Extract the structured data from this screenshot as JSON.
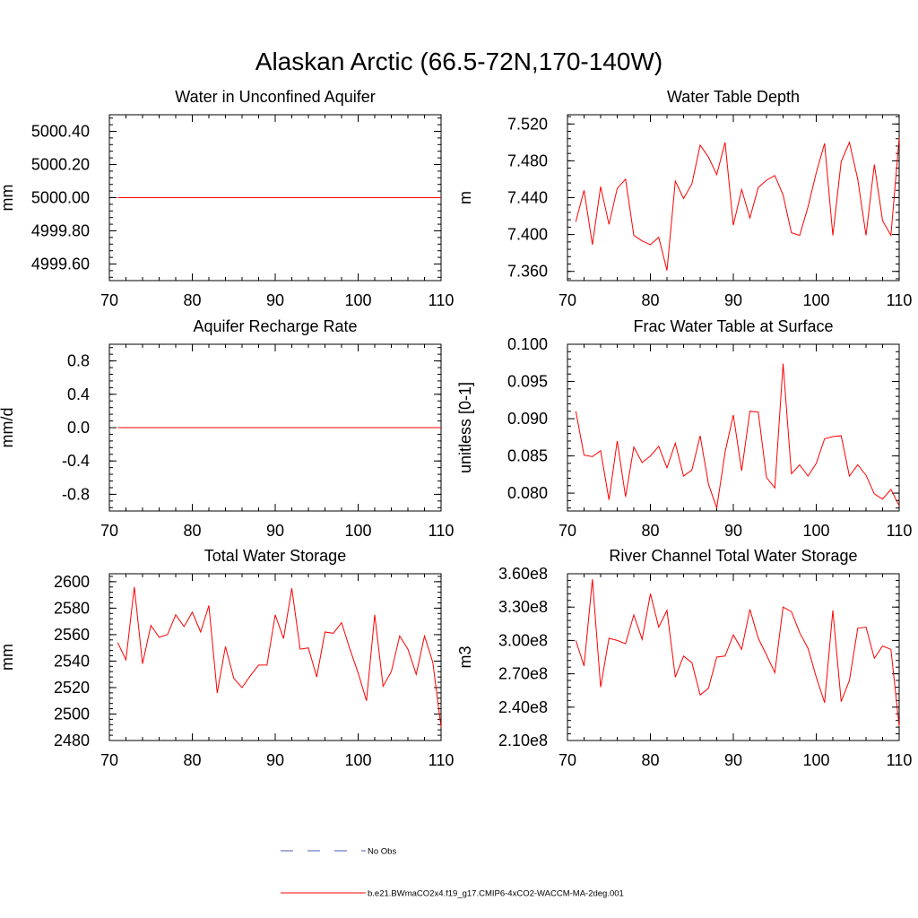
{
  "figure": {
    "title": "Alaskan Arctic (66.5-72N,170-140W)"
  },
  "legend": {
    "entries": [
      {
        "label": "No Obs",
        "color": "#4a5bb8",
        "dashed": true
      },
      {
        "label": "b.e21.BWmaCO2x4.f19_g17.CMIP6-4xCO2-WACCM-MA-2deg.001",
        "color": "#ff0000",
        "dashed": false
      }
    ]
  },
  "colors": {
    "series": "#ff0000",
    "axis": "#000000"
  },
  "chart_data": [
    {
      "type": "line",
      "title": "Water in Unconfined Aquifer",
      "ylabel": "mm",
      "xlim": [
        70,
        110
      ],
      "ylim": [
        4999.5,
        5000.5
      ],
      "xticks": [
        "70",
        "80",
        "90",
        "100",
        "110"
      ],
      "yticks": [
        "4999.60",
        "4999.80",
        "5000.00",
        "5000.20",
        "5000.40"
      ],
      "series": [
        {
          "name": "b.e21.BWmaCO2x4.f19_g17.CMIP6-4xCO2-WACCM-MA-2deg.001",
          "x": [
            71,
            110
          ],
          "values": [
            5000.0,
            5000.0
          ]
        }
      ]
    },
    {
      "type": "line",
      "title": "Water Table Depth",
      "ylabel": "m",
      "xlim": [
        70,
        110
      ],
      "ylim": [
        7.35,
        7.53
      ],
      "xticks": [
        "70",
        "80",
        "90",
        "100",
        "110"
      ],
      "yticks": [
        "7.360",
        "7.400",
        "7.440",
        "7.480",
        "7.520"
      ],
      "series": [
        {
          "name": "b.e21.BWmaCO2x4.f19_g17.CMIP6-4xCO2-WACCM-MA-2deg.001",
          "x": [
            71,
            72,
            73,
            74,
            75,
            76,
            77,
            78,
            79,
            80,
            81,
            82,
            83,
            84,
            85,
            86,
            87,
            88,
            89,
            90,
            91,
            92,
            93,
            94,
            95,
            96,
            97,
            98,
            99,
            100,
            101,
            102,
            103,
            104,
            105,
            106,
            107,
            108,
            109,
            110
          ],
          "values": [
            7.414,
            7.448,
            7.389,
            7.452,
            7.411,
            7.45,
            7.46,
            7.399,
            7.393,
            7.389,
            7.397,
            7.361,
            7.458,
            7.439,
            7.455,
            7.497,
            7.484,
            7.465,
            7.5,
            7.41,
            7.449,
            7.418,
            7.451,
            7.459,
            7.464,
            7.443,
            7.402,
            7.399,
            7.43,
            7.467,
            7.499,
            7.399,
            7.479,
            7.5,
            7.46,
            7.399,
            7.476,
            7.415,
            7.399,
            7.505
          ]
        }
      ]
    },
    {
      "type": "line",
      "title": "Aquifer Recharge Rate",
      "ylabel": "mm/d",
      "xlim": [
        70,
        110
      ],
      "ylim": [
        -1.0,
        1.0
      ],
      "xticks": [
        "70",
        "80",
        "90",
        "100",
        "110"
      ],
      "yticks": [
        "-0.8",
        "-0.4",
        "0.0",
        "0.4",
        "0.8"
      ],
      "series": [
        {
          "name": "b.e21.BWmaCO2x4.f19_g17.CMIP6-4xCO2-WACCM-MA-2deg.001",
          "x": [
            71,
            110
          ],
          "values": [
            0.0,
            0.0
          ]
        }
      ]
    },
    {
      "type": "line",
      "title": "Frac Water Table at Surface",
      "ylabel": "unitless [0-1]",
      "xlim": [
        70,
        110
      ],
      "ylim": [
        0.0776,
        0.1
      ],
      "xticks": [
        "70",
        "80",
        "90",
        "100",
        "110"
      ],
      "yticks": [
        "0.080",
        "0.085",
        "0.090",
        "0.095",
        "0.100"
      ],
      "series": [
        {
          "name": "b.e21.BWmaCO2x4.f19_g17.CMIP6-4xCO2-WACCM-MA-2deg.001",
          "x": [
            71,
            72,
            73,
            74,
            75,
            76,
            77,
            78,
            79,
            80,
            81,
            82,
            83,
            84,
            85,
            86,
            87,
            88,
            89,
            90,
            91,
            92,
            93,
            94,
            95,
            96,
            97,
            98,
            99,
            100,
            101,
            102,
            103,
            104,
            105,
            106,
            107,
            108,
            109,
            110
          ],
          "values": [
            0.091,
            0.0851,
            0.0849,
            0.0857,
            0.0791,
            0.087,
            0.0795,
            0.0862,
            0.0841,
            0.085,
            0.0863,
            0.0834,
            0.0867,
            0.0823,
            0.0831,
            0.0877,
            0.0812,
            0.078,
            0.0855,
            0.0905,
            0.083,
            0.091,
            0.0909,
            0.0821,
            0.0807,
            0.0974,
            0.0826,
            0.0838,
            0.0823,
            0.084,
            0.0873,
            0.0876,
            0.0877,
            0.0823,
            0.0838,
            0.0824,
            0.0799,
            0.0792,
            0.0805,
            0.0783
          ]
        }
      ]
    },
    {
      "type": "line",
      "title": "Total Water Storage",
      "ylabel": "mm",
      "xlim": [
        70,
        110
      ],
      "ylim": [
        2480,
        2606
      ],
      "xticks": [
        "70",
        "80",
        "90",
        "100",
        "110"
      ],
      "yticks": [
        "2480",
        "2500",
        "2520",
        "2540",
        "2560",
        "2580",
        "2600"
      ],
      "series": [
        {
          "name": "b.e21.BWmaCO2x4.f19_g17.CMIP6-4xCO2-WACCM-MA-2deg.001",
          "x": [
            71,
            72,
            73,
            74,
            75,
            76,
            77,
            78,
            79,
            80,
            81,
            82,
            83,
            84,
            85,
            86,
            87,
            88,
            89,
            90,
            91,
            92,
            93,
            94,
            95,
            96,
            97,
            98,
            99,
            100,
            101,
            102,
            103,
            104,
            105,
            106,
            107,
            108,
            109,
            110
          ],
          "values": [
            2554,
            2541,
            2596,
            2538,
            2567,
            2558,
            2560,
            2575,
            2566,
            2577,
            2562,
            2582,
            2516,
            2551,
            2527,
            2520,
            2529,
            2537,
            2537,
            2575,
            2557,
            2595,
            2549,
            2550,
            2528,
            2562,
            2561,
            2569,
            2549,
            2531,
            2510,
            2575,
            2521,
            2532,
            2559,
            2549,
            2530,
            2559,
            2539,
            2490
          ]
        }
      ]
    },
    {
      "type": "line",
      "title": "River Channel Total Water Storage",
      "ylabel": "m3",
      "xlim": [
        70,
        110
      ],
      "ylim": [
        210000000.0,
        360000000.0
      ],
      "xticks": [
        "70",
        "80",
        "90",
        "100",
        "110"
      ],
      "yticks": [
        "2.10e8",
        "2.40e8",
        "2.70e8",
        "3.00e8",
        "3.30e8",
        "3.60e8"
      ],
      "series": [
        {
          "name": "b.e21.BWmaCO2x4.f19_g17.CMIP6-4xCO2-WACCM-MA-2deg.001",
          "x": [
            71,
            72,
            73,
            74,
            75,
            76,
            77,
            78,
            79,
            80,
            81,
            82,
            83,
            84,
            85,
            86,
            87,
            88,
            89,
            90,
            91,
            92,
            93,
            94,
            95,
            96,
            97,
            98,
            99,
            100,
            101,
            102,
            103,
            104,
            105,
            106,
            107,
            108,
            109,
            110
          ],
          "values": [
            300000000.0,
            277000000.0,
            355000000.0,
            258000000.0,
            302000000.0,
            300000000.0,
            297000000.0,
            323000000.0,
            301000000.0,
            342000000.0,
            312000000.0,
            327000000.0,
            267000000.0,
            286000000.0,
            280000000.0,
            251000000.0,
            257000000.0,
            285000000.0,
            286000000.0,
            305000000.0,
            292000000.0,
            328000000.0,
            302000000.0,
            287000000.0,
            271000000.0,
            330000000.0,
            326000000.0,
            307000000.0,
            293000000.0,
            267000000.0,
            244000000.0,
            327000000.0,
            245000000.0,
            264000000.0,
            311000000.0,
            312000000.0,
            284000000.0,
            295000000.0,
            292000000.0,
            223000000.0
          ]
        }
      ]
    }
  ]
}
